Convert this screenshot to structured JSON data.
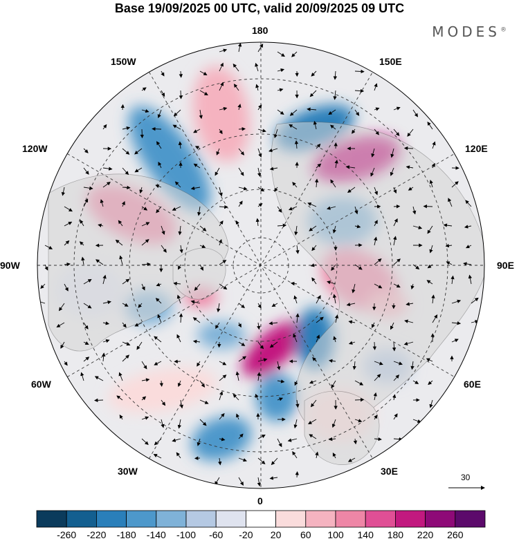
{
  "title": "Base 19/09/2025 00 UTC, valid 20/09/2025 09 UTC",
  "brand": "MODES",
  "brand_mark": "®",
  "longitude_labels": {
    "top": "180",
    "bottom": "0",
    "left": "90W",
    "right": "90E",
    "upper_left_1": "150W",
    "upper_left_2": "120W",
    "lower_left_1": "60W",
    "lower_left_2": "30W",
    "upper_right_1": "150E",
    "upper_right_2": "120E",
    "lower_right_1": "60E",
    "lower_right_2": "30E"
  },
  "vector_scale": {
    "value": "30"
  },
  "colorbar": {
    "ticks": [
      "-260",
      "-220",
      "-180",
      "-140",
      "-100",
      "-60",
      "-20",
      "20",
      "60",
      "100",
      "140",
      "180",
      "220",
      "260"
    ],
    "colors": [
      "#0b3b5c",
      "#135f90",
      "#2a7fba",
      "#4d98cb",
      "#7fb2d8",
      "#b5c9e3",
      "#dfe3ef",
      "#ffffff",
      "#fadcdc",
      "#f5b3c0",
      "#ee86a6",
      "#e04f95",
      "#c2197f",
      "#8e0a77",
      "#5c0a6b"
    ]
  },
  "colors": {
    "land": "#d9d9d9",
    "ocean": "#ffffff",
    "coast": "#555555"
  }
}
